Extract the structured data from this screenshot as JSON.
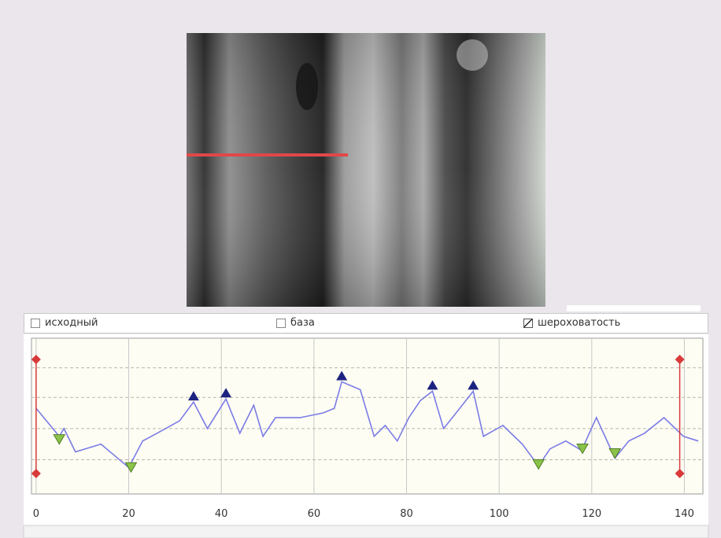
{
  "checkboxes": [
    {
      "label": "исходный",
      "checked": false
    },
    {
      "label": "база",
      "checked": false
    },
    {
      "label": "шероховатость",
      "checked": true
    }
  ],
  "chart_data": {
    "type": "line",
    "x": [
      0,
      5,
      6,
      8.5,
      14,
      18,
      20,
      23,
      28,
      31,
      34,
      37,
      41,
      44,
      47,
      49,
      51.7,
      57,
      62,
      64.4,
      66,
      70,
      73,
      75.4,
      78,
      80.5,
      83,
      85.6,
      88,
      90.7,
      94.4,
      96.6,
      100.8,
      105,
      108.5,
      111,
      114.4,
      117.8,
      121,
      125,
      128,
      131.4,
      135.6,
      139.8,
      143
    ],
    "series": [
      {
        "color": "#7b7be6",
        "values": [
          5.5,
          3.7,
          4.2,
          2.7,
          3.2,
          2.2,
          1.7,
          3.4,
          4.2,
          4.7,
          5.9,
          4.2,
          6.1,
          3.9,
          5.7,
          3.7,
          4.9,
          4.9,
          5.2,
          5.5,
          7.2,
          6.7,
          3.7,
          4.4,
          3.4,
          4.9,
          6.0,
          6.6,
          4.2,
          5.2,
          6.6,
          3.7,
          4.4,
          3.2,
          1.8,
          2.9,
          3.4,
          2.8,
          4.9,
          2.3,
          3.4,
          3.9,
          4.9,
          3.7,
          3.4
        ]
      }
    ],
    "peaks": {
      "color": "#1c2280",
      "x": [
        34,
        41,
        66,
        85.6,
        94.4
      ],
      "values": [
        5.9,
        6.1,
        7.2,
        6.6,
        6.6
      ]
    },
    "valleys": {
      "color": "#8bc34a",
      "x": [
        5,
        20.5,
        108.5,
        118,
        125
      ],
      "values": [
        3.3,
        1.5,
        1.7,
        2.7,
        2.4
      ]
    },
    "cursors": {
      "color": "#d83a3a",
      "x": [
        0,
        139
      ]
    },
    "xlim": [
      -1,
      144
    ],
    "xticks": [
      0,
      20,
      40,
      60,
      80,
      100,
      120,
      140
    ],
    "ylim": [
      0,
      10
    ],
    "ygrid": [
      2.2,
      4.2,
      6.2,
      8.1
    ],
    "grid": true
  }
}
